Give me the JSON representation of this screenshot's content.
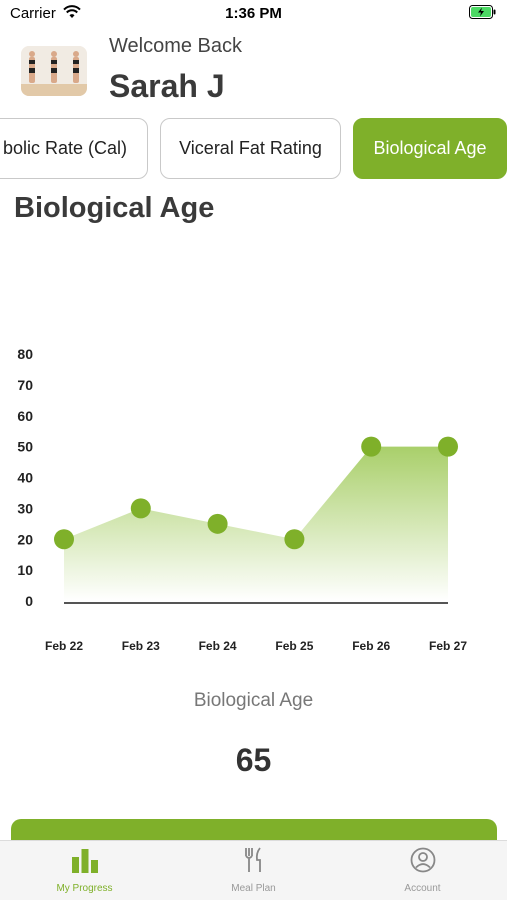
{
  "status_bar": {
    "carrier": "Carrier",
    "time": "1:36 PM"
  },
  "header": {
    "welcome": "Welcome Back",
    "user_name": "Sarah J"
  },
  "tabs": [
    {
      "label": "bolic Rate (Cal)"
    },
    {
      "label": "Viceral Fat Rating"
    },
    {
      "label": "Biological Age",
      "active": true
    }
  ],
  "section_title": "Biological Age",
  "chart_data": {
    "type": "area",
    "title": "",
    "xlabel": "",
    "ylabel": "",
    "categories": [
      "Feb 22",
      "Feb 23",
      "Feb 24",
      "Feb 25",
      "Feb 26",
      "Feb 27"
    ],
    "values": [
      20,
      30,
      25,
      20,
      50,
      50
    ],
    "ylim": [
      0,
      80
    ],
    "yticks": [
      0,
      10,
      20,
      30,
      40,
      50,
      60,
      70,
      80
    ],
    "grid": false,
    "colors": {
      "point": "#7fb02a",
      "fill_top": "#a9cf6a",
      "fill_bottom": "#ffffff",
      "axis": "#555555"
    }
  },
  "metric": {
    "label": "Biological Age",
    "value": "65"
  },
  "tab_bar": {
    "items": [
      {
        "label": "My Progress",
        "icon": "bar-chart-icon",
        "active": true
      },
      {
        "label": "Meal Plan",
        "icon": "fork-knife-icon"
      },
      {
        "label": "Account",
        "icon": "account-icon"
      }
    ]
  },
  "colors": {
    "accent": "#7fb02a"
  }
}
